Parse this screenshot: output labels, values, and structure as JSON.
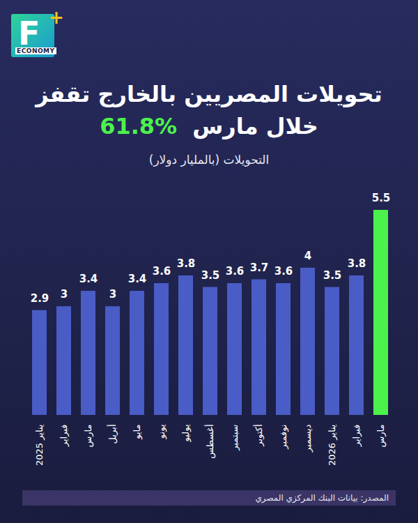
{
  "brand": {
    "letter": "F",
    "plus": "+",
    "word": "ECONOMY"
  },
  "chart_data": {
    "type": "bar",
    "title": "تحويلات المصريين بالخارج تقفز",
    "title_line2": "خلال مارس",
    "title_figure": "%61.8",
    "subtitle": "التحويلات (بالمليار دولار)",
    "source": "المصدر: بيانات البنك المركزي المصري",
    "categories": [
      "يناير 2025",
      "فبراير",
      "مارس",
      "أبريل",
      "مايو",
      "يونو",
      "يوليو",
      "أغسطس",
      "سبتمبر",
      "أكتوبر",
      "نوفمبر",
      "ديسمبر",
      "يناير 2026",
      "فبراير",
      "مارس"
    ],
    "values": [
      2.9,
      3,
      3.4,
      3,
      3.4,
      3.6,
      3.8,
      3.5,
      3.6,
      3.7,
      3.6,
      4,
      3.5,
      3.8,
      5.5
    ],
    "colors": [
      "#4a5cc6",
      "#4a5cc6",
      "#4a5cc6",
      "#4a5cc6",
      "#4a5cc6",
      "#4a5cc6",
      "#4a5cc6",
      "#4a5cc6",
      "#4a5cc6",
      "#4a5cc6",
      "#4a5cc6",
      "#4a5cc6",
      "#4a5cc6",
      "#4a5cc6",
      "#4cf24c"
    ],
    "ylim": [
      0,
      5.5
    ],
    "grid": false,
    "data_labels": true,
    "tick_labels": "x"
  }
}
